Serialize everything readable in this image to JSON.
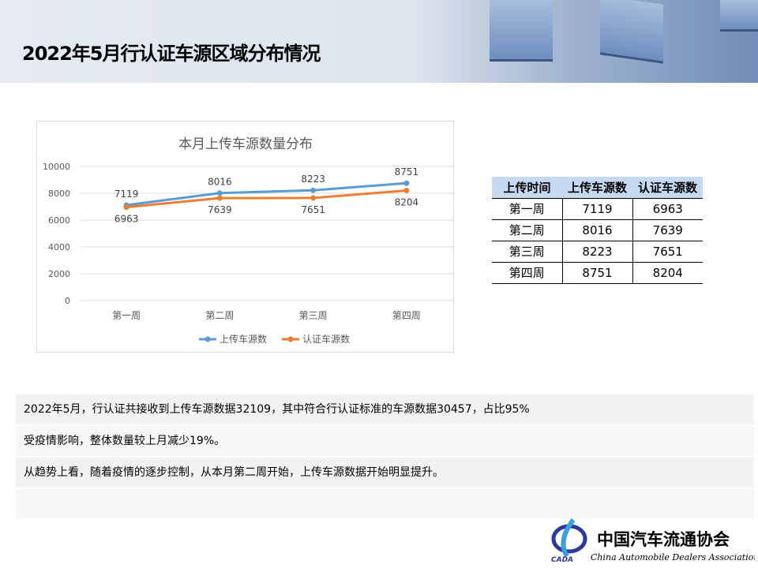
{
  "header": {
    "title": "2022年5月行认证车源区域分布情况"
  },
  "chart_data": {
    "type": "line",
    "title": "本月上传车源数量分布",
    "categories": [
      "第一周",
      "第二周",
      "第三周",
      "第四周"
    ],
    "ylim": [
      0,
      10000
    ],
    "yticks": [
      0,
      2000,
      4000,
      6000,
      8000,
      10000
    ],
    "grid": true,
    "legend_position": "bottom",
    "series": [
      {
        "name": "上传车源数",
        "values": [
          7119,
          8016,
          8223,
          8751
        ],
        "color": "#5b9bd5"
      },
      {
        "name": "认证车源数",
        "values": [
          6963,
          7639,
          7651,
          8204
        ],
        "color": "#ed7d31"
      }
    ]
  },
  "table": {
    "headers": [
      "上传时间",
      "上传车源数",
      "认证车源数"
    ],
    "rows": [
      [
        "第一周",
        "7119",
        "6963"
      ],
      [
        "第二周",
        "8016",
        "7639"
      ],
      [
        "第三周",
        "8223",
        "7651"
      ],
      [
        "第四周",
        "8751",
        "8204"
      ]
    ]
  },
  "notes": [
    "2022年5月，行认证共接收到上传车源数据32109，其中符合行认证标准的车源数据30457，占比95%",
    "受疫情影响，整体数量较上月减少19%。",
    "从趋势上看，随着疫情的逐步控制，从本月第二周开始，上传车源数据开始明显提升。",
    ""
  ],
  "logo": {
    "name_cn": "中国汽车流通协会",
    "name_en": "China Automobile Dealers Association",
    "abbr": "CADA"
  }
}
